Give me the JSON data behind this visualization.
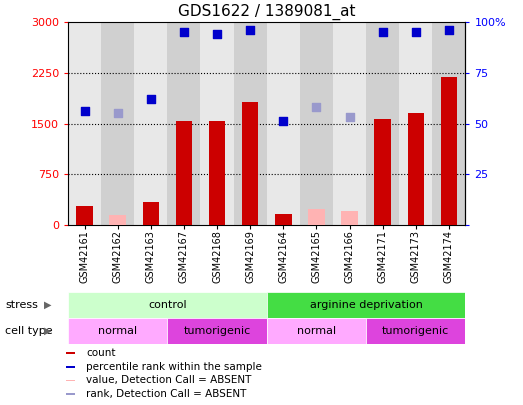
{
  "title": "GDS1622 / 1389081_at",
  "samples": [
    "GSM42161",
    "GSM42162",
    "GSM42163",
    "GSM42167",
    "GSM42168",
    "GSM42169",
    "GSM42164",
    "GSM42165",
    "GSM42166",
    "GSM42171",
    "GSM42173",
    "GSM42174"
  ],
  "count_values": [
    280,
    null,
    340,
    1530,
    1540,
    1820,
    160,
    null,
    null,
    1560,
    1650,
    2190
  ],
  "count_absent": [
    null,
    140,
    null,
    null,
    null,
    null,
    null,
    230,
    200,
    null,
    null,
    null
  ],
  "rank_percent_present": [
    56,
    null,
    62,
    95,
    94,
    96,
    51,
    null,
    null,
    95,
    95,
    96
  ],
  "rank_percent_absent": [
    null,
    55,
    null,
    null,
    null,
    null,
    null,
    58,
    53,
    null,
    null,
    null
  ],
  "bar_color_present": "#cc0000",
  "bar_color_absent": "#ffb3b3",
  "dot_color_present": "#0000cc",
  "dot_color_absent": "#9999cc",
  "ylim_left": [
    0,
    3000
  ],
  "ylim_right": [
    0,
    100
  ],
  "yticks_left": [
    0,
    750,
    1500,
    2250,
    3000
  ],
  "yticks_right": [
    0,
    25,
    50,
    75,
    100
  ],
  "ytick_labels_left": [
    "0",
    "750",
    "1500",
    "2250",
    "3000"
  ],
  "ytick_labels_right": [
    "0",
    "25",
    "50",
    "75",
    "100%"
  ],
  "col_bg_even": "#e8e8e8",
  "col_bg_odd": "#d0d0d0",
  "stress_groups": [
    {
      "label": "control",
      "start": 0,
      "end": 6,
      "color": "#ccffcc"
    },
    {
      "label": "arginine deprivation",
      "start": 6,
      "end": 12,
      "color": "#44dd44"
    }
  ],
  "celltype_groups": [
    {
      "label": "normal",
      "start": 0,
      "end": 3,
      "color": "#ffaaff"
    },
    {
      "label": "tumorigenic",
      "start": 3,
      "end": 6,
      "color": "#dd44dd"
    },
    {
      "label": "normal",
      "start": 6,
      "end": 9,
      "color": "#ffaaff"
    },
    {
      "label": "tumorigenic",
      "start": 9,
      "end": 12,
      "color": "#dd44dd"
    }
  ],
  "legend_items": [
    {
      "label": "count",
      "facecolor": "#cc0000"
    },
    {
      "label": "percentile rank within the sample",
      "facecolor": "#0000cc"
    },
    {
      "label": "value, Detection Call = ABSENT",
      "facecolor": "#ffb3b3"
    },
    {
      "label": "rank, Detection Call = ABSENT",
      "facecolor": "#9999cc"
    }
  ],
  "bar_width": 0.5,
  "dot_size": 40,
  "plot_bg": "#ffffff"
}
